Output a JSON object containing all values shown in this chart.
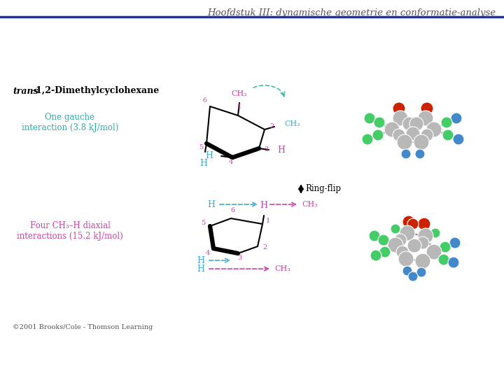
{
  "title": "Hoofdstuk III: dynamische geometrie en conformatie-analyse",
  "title_fontsize": 9.5,
  "title_color": "#555555",
  "bg_color": "#ffffff",
  "top_line_color": "#2233AA",
  "label1_color": "#33AAAA",
  "label1_text": "One gauche\ninteraction (3.8 kJ/mol)",
  "label2_color": "#CC44AA",
  "label2_text": "Four CH₃–H diaxial\ninteractions (15.2 kJ/mol)",
  "ringflip_text": "Ring-flip",
  "copyright_text": "©2001 Brooks/Cole - Thomson Learning",
  "copyright_fontsize": 7,
  "num_color": "#CC44AA",
  "subst_color_pink": "#CC44AA",
  "subst_color_cyan": "#44AACC",
  "black": "#000000"
}
